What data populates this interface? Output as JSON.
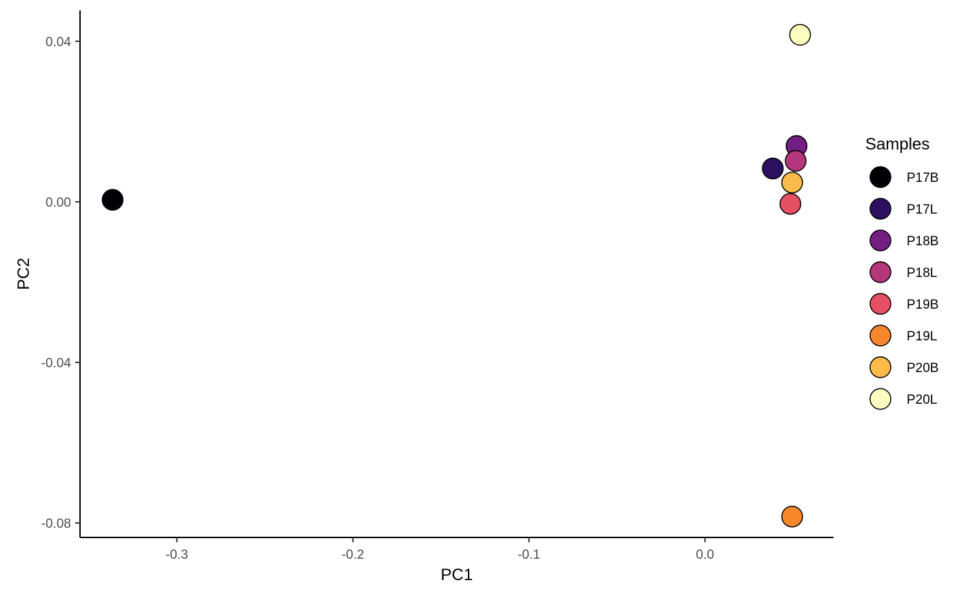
{
  "chart_data": {
    "type": "scatter",
    "title": "",
    "xlabel": "PC1",
    "ylabel": "PC2",
    "xlim": [
      -0.355,
      0.073
    ],
    "ylim": [
      -0.0836,
      0.0477
    ],
    "xticks": [
      -0.3,
      -0.2,
      -0.1,
      0.0
    ],
    "xtick_labels": [
      "-0.3",
      "-0.2",
      "-0.1",
      "0.0"
    ],
    "yticks": [
      0.04,
      0.0,
      -0.04,
      -0.08
    ],
    "ytick_labels": [
      "0.04",
      "0.00",
      "-0.04",
      "-0.08"
    ],
    "grid": false,
    "legend": {
      "title": "Samples",
      "position": "right"
    },
    "series": [
      {
        "name": "P17B",
        "color": "#000004",
        "x": -0.3365,
        "y": 0.0005
      },
      {
        "name": "P17L",
        "color": "#2D1160",
        "x": 0.0385,
        "y": 0.0083
      },
      {
        "name": "P18B",
        "color": "#721F81",
        "x": 0.052,
        "y": 0.0139
      },
      {
        "name": "P18L",
        "color": "#B5367A",
        "x": 0.0515,
        "y": 0.0102
      },
      {
        "name": "P19B",
        "color": "#E55064",
        "x": 0.0485,
        "y": -0.0005
      },
      {
        "name": "P19L",
        "color": "#F8862B",
        "x": 0.0495,
        "y": -0.0784
      },
      {
        "name": "P20B",
        "color": "#FBBB4B",
        "x": 0.0495,
        "y": 0.0048
      },
      {
        "name": "P20L",
        "color": "#FCFDBF",
        "x": 0.054,
        "y": 0.0416
      }
    ]
  }
}
